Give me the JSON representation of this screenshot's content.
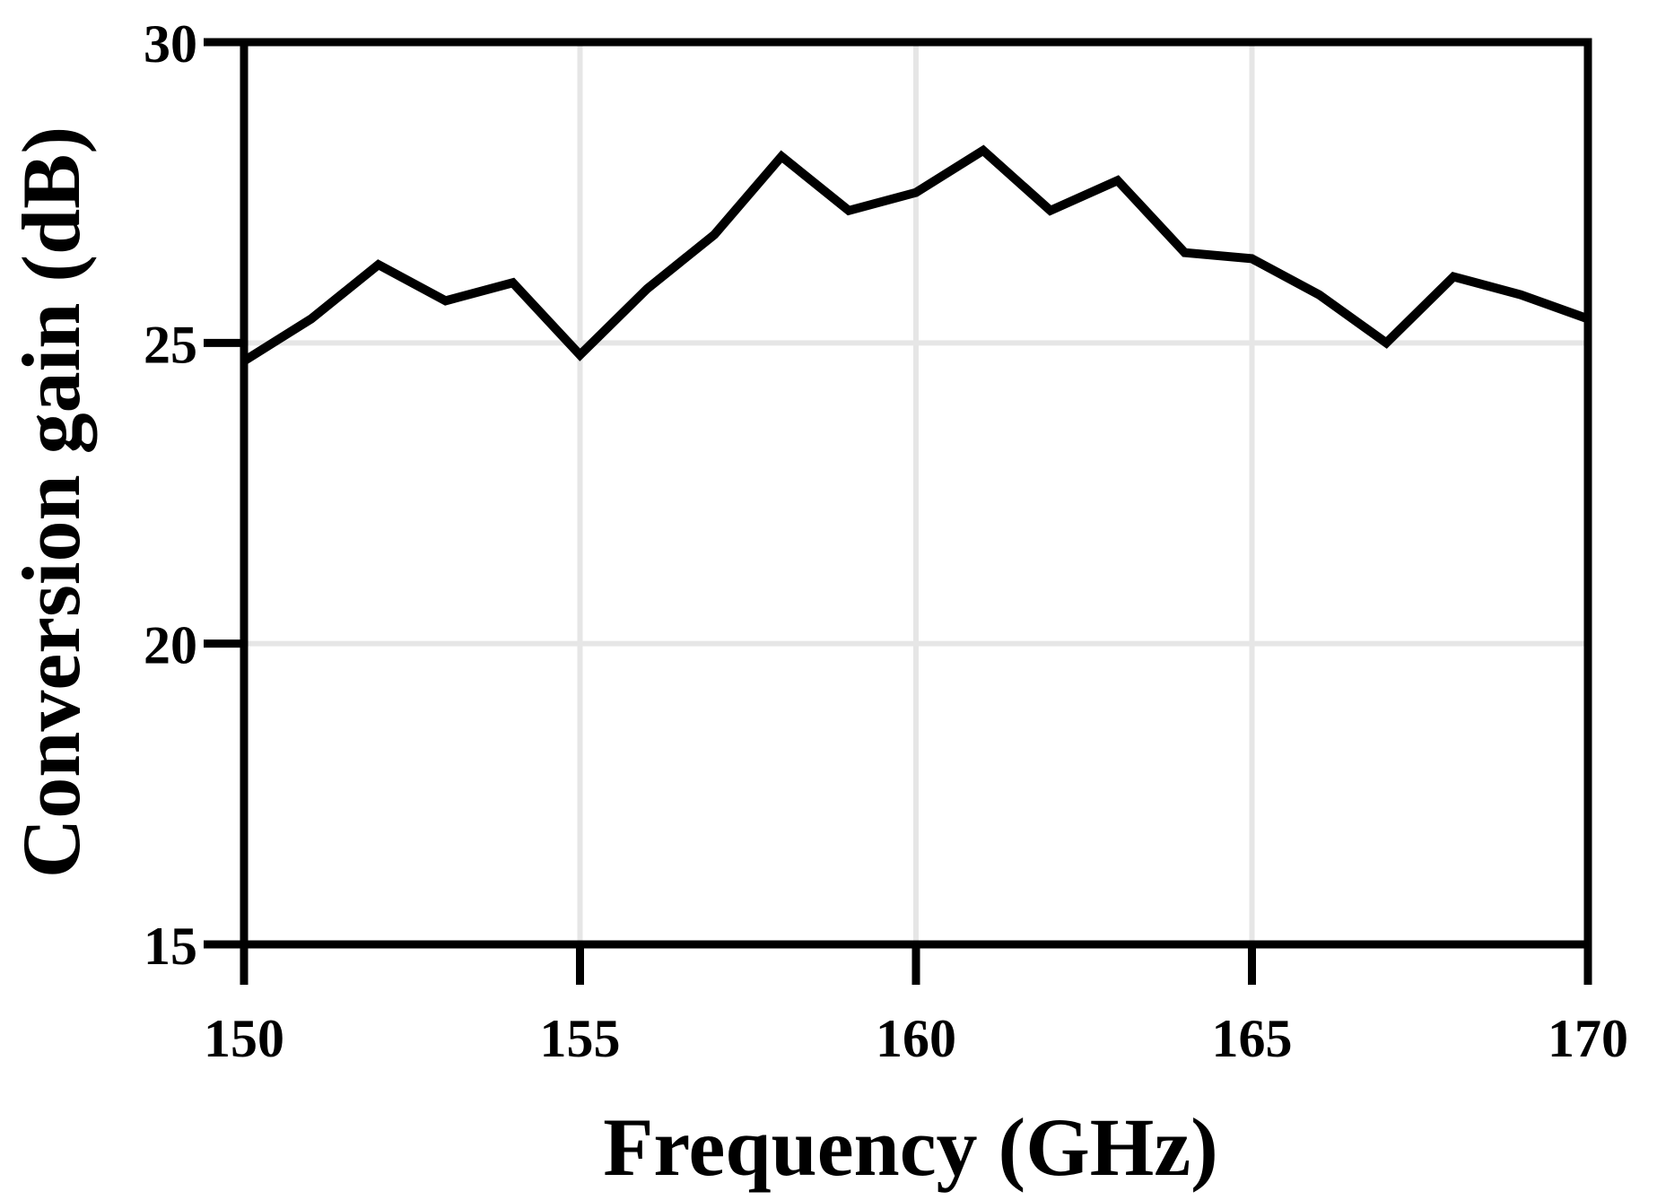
{
  "chart_data": {
    "type": "line",
    "title": "",
    "xlabel": "Frequency (GHz)",
    "ylabel": "Conversion gain (dB)",
    "xlim": [
      150,
      170
    ],
    "ylim": [
      15,
      30
    ],
    "xticks": [
      150,
      155,
      160,
      165,
      170
    ],
    "yticks": [
      15,
      20,
      25,
      30
    ],
    "xtick_labels": [
      "150",
      "155",
      "160",
      "165",
      "170"
    ],
    "ytick_labels": [
      "15",
      "20",
      "25",
      "30"
    ],
    "grid": true,
    "legend": "none",
    "colors": {
      "line": "#000000",
      "grid": "#e6e6e6",
      "axes": "#000000"
    },
    "series": [
      {
        "x": [
          150,
          151,
          152,
          153,
          154,
          155,
          156,
          157,
          158,
          159,
          160,
          161,
          162,
          163,
          164,
          165,
          166,
          167,
          168,
          169,
          170
        ],
        "values": [
          24.7,
          25.4,
          26.3,
          25.7,
          26.0,
          24.8,
          25.9,
          26.8,
          28.1,
          27.2,
          27.5,
          28.2,
          27.2,
          27.7,
          26.5,
          26.4,
          25.8,
          25.0,
          26.1,
          25.8,
          25.4
        ]
      }
    ]
  }
}
